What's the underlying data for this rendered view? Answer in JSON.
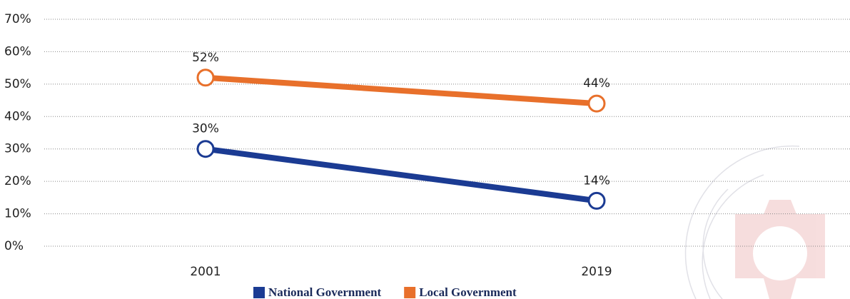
{
  "chart_data": {
    "type": "line",
    "categories": [
      "2001",
      "2019"
    ],
    "series": [
      {
        "name": "National Government",
        "color": "#1b3b93",
        "values": [
          30,
          14
        ],
        "value_labels": [
          "30%",
          "14%"
        ]
      },
      {
        "name": "Local Government",
        "color": "#e8702b",
        "values": [
          52,
          44
        ],
        "value_labels": [
          "52%",
          "44%"
        ]
      }
    ],
    "ylim": [
      0,
      70
    ],
    "yticks": [
      {
        "value": 0,
        "label": "0%"
      },
      {
        "value": 10,
        "label": "10%"
      },
      {
        "value": 20,
        "label": "20%"
      },
      {
        "value": 30,
        "label": "30%"
      },
      {
        "value": 40,
        "label": "40%"
      },
      {
        "value": 50,
        "label": "50%"
      },
      {
        "value": 60,
        "label": "60%"
      },
      {
        "value": 70,
        "label": "70%"
      }
    ],
    "grid": true
  }
}
